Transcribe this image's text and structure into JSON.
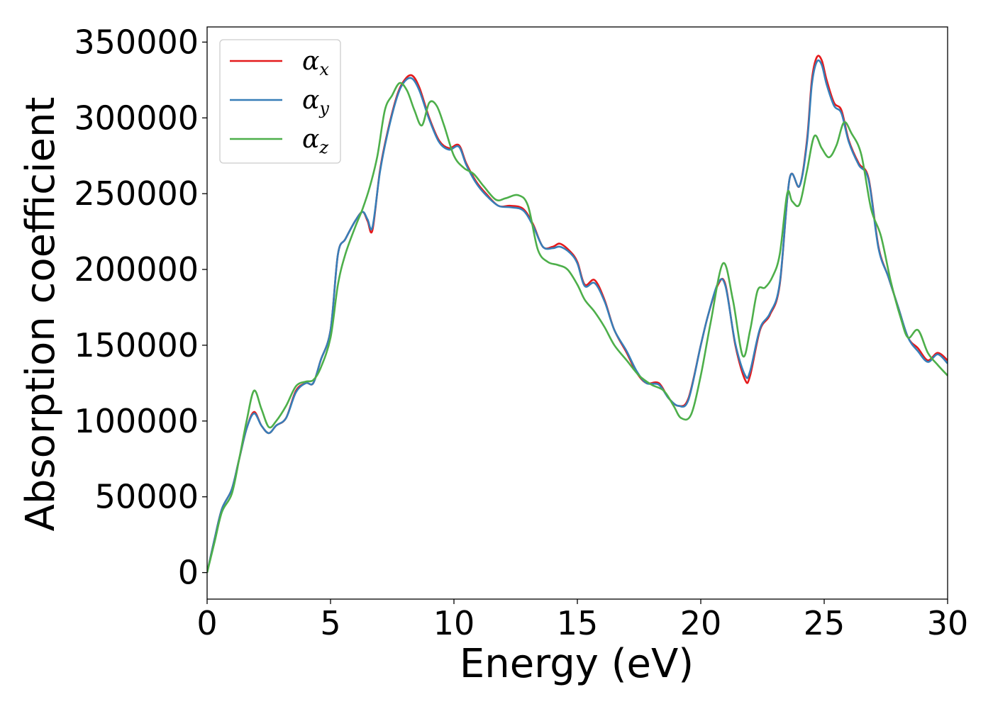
{
  "chart_data": {
    "type": "line",
    "title": "",
    "xlabel": "Energy (eV)",
    "ylabel": "Absorption coefficient",
    "xlim": [
      0,
      30
    ],
    "ylim": [
      -17500,
      360000
    ],
    "xticks": [
      0,
      5,
      10,
      15,
      20,
      25,
      30
    ],
    "yticks": [
      0,
      50000,
      100000,
      150000,
      200000,
      250000,
      300000,
      350000
    ],
    "grid": false,
    "legend_position": "top-left",
    "series": [
      {
        "name": "α_x",
        "name_base": "α",
        "name_sub": "x",
        "color": "#e41a1c",
        "x": [
          0,
          0.3,
          0.6,
          1.0,
          1.3,
          1.6,
          1.9,
          2.2,
          2.5,
          2.8,
          3.2,
          3.6,
          4.0,
          4.3,
          4.6,
          5.0,
          5.3,
          5.6,
          6.0,
          6.3,
          6.5,
          6.7,
          7.0,
          7.3,
          7.7,
          8.0,
          8.3,
          8.6,
          9.0,
          9.4,
          9.8,
          10.2,
          10.5,
          10.9,
          11.3,
          11.8,
          12.3,
          12.8,
          13.2,
          13.6,
          14.0,
          14.3,
          14.7,
          15.0,
          15.3,
          15.7,
          16.1,
          16.5,
          17.0,
          17.4,
          17.8,
          18.3,
          18.7,
          19.1,
          19.5,
          20.0,
          20.3,
          20.7,
          21.0,
          21.4,
          21.8,
          22.0,
          22.4,
          22.8,
          23.2,
          23.6,
          24.0,
          24.3,
          24.5,
          24.7,
          24.9,
          25.1,
          25.4,
          25.7,
          26.0,
          26.4,
          26.8,
          27.2,
          27.6,
          28.0,
          28.4,
          28.8,
          29.2,
          29.6,
          30.0
        ],
        "y": [
          0,
          22000,
          42000,
          55000,
          75000,
          95000,
          106000,
          97000,
          92000,
          97000,
          102000,
          120000,
          125000,
          125000,
          140000,
          160000,
          210000,
          220000,
          232000,
          238000,
          232000,
          226000,
          265000,
          290000,
          315000,
          325000,
          328000,
          320000,
          300000,
          285000,
          280000,
          282000,
          270000,
          258000,
          250000,
          242000,
          242000,
          240000,
          230000,
          215000,
          215000,
          217000,
          212000,
          205000,
          190000,
          193000,
          180000,
          160000,
          145000,
          132000,
          125000,
          125000,
          115000,
          110000,
          115000,
          150000,
          170000,
          190000,
          190000,
          150000,
          127000,
          130000,
          160000,
          170000,
          190000,
          260000,
          255000,
          285000,
          325000,
          340000,
          338000,
          325000,
          310000,
          305000,
          285000,
          270000,
          260000,
          215000,
          195000,
          175000,
          155000,
          148000,
          140000,
          145000,
          140000
        ]
      },
      {
        "name": "α_y",
        "name_base": "α",
        "name_sub": "y",
        "color": "#377eb8",
        "x": [
          0,
          0.3,
          0.6,
          1.0,
          1.3,
          1.6,
          1.9,
          2.2,
          2.5,
          2.8,
          3.2,
          3.6,
          4.0,
          4.3,
          4.6,
          5.0,
          5.3,
          5.6,
          6.0,
          6.3,
          6.5,
          6.7,
          7.0,
          7.3,
          7.7,
          8.0,
          8.3,
          8.6,
          9.0,
          9.4,
          9.8,
          10.2,
          10.5,
          10.9,
          11.3,
          11.8,
          12.3,
          12.8,
          13.2,
          13.6,
          14.0,
          14.3,
          14.7,
          15.0,
          15.3,
          15.7,
          16.1,
          16.5,
          17.0,
          17.4,
          17.8,
          18.3,
          18.7,
          19.1,
          19.5,
          20.0,
          20.3,
          20.7,
          21.0,
          21.4,
          21.8,
          22.0,
          22.4,
          22.8,
          23.2,
          23.6,
          24.0,
          24.3,
          24.5,
          24.7,
          24.9,
          25.1,
          25.4,
          25.7,
          26.0,
          26.4,
          26.8,
          27.2,
          27.6,
          28.0,
          28.4,
          28.8,
          29.2,
          29.6,
          30.0
        ],
        "y": [
          0,
          22000,
          42000,
          55000,
          75000,
          95000,
          105000,
          97000,
          92000,
          97000,
          102000,
          119000,
          125000,
          125000,
          140000,
          160000,
          210000,
          220000,
          232000,
          238000,
          233000,
          228000,
          264000,
          289000,
          314000,
          324000,
          326000,
          318000,
          299000,
          284000,
          279000,
          281000,
          269000,
          257000,
          249000,
          242000,
          241000,
          239000,
          229000,
          215000,
          214000,
          215000,
          211000,
          204000,
          189000,
          191000,
          179000,
          160000,
          146000,
          133000,
          125000,
          124000,
          115000,
          110000,
          114000,
          150000,
          170000,
          191000,
          189000,
          151000,
          130000,
          133000,
          161000,
          171000,
          191000,
          260000,
          255000,
          283000,
          322000,
          337000,
          335000,
          322000,
          308000,
          303000,
          284000,
          269000,
          259000,
          214000,
          195000,
          175000,
          155000,
          146000,
          139000,
          144000,
          138000
        ]
      },
      {
        "name": "α_z",
        "name_base": "α",
        "name_sub": "z",
        "color": "#4daf4a",
        "x": [
          0,
          0.3,
          0.6,
          1.0,
          1.3,
          1.6,
          1.9,
          2.2,
          2.5,
          2.8,
          3.2,
          3.6,
          4.0,
          4.3,
          4.6,
          5.0,
          5.3,
          5.6,
          6.0,
          6.3,
          6.6,
          6.9,
          7.2,
          7.5,
          7.8,
          8.1,
          8.4,
          8.7,
          9.0,
          9.3,
          9.6,
          10.0,
          10.4,
          10.8,
          11.2,
          11.7,
          12.1,
          12.6,
          13.0,
          13.4,
          13.8,
          14.2,
          14.6,
          15.0,
          15.3,
          15.7,
          16.1,
          16.5,
          17.0,
          17.5,
          18.0,
          18.5,
          18.9,
          19.2,
          19.6,
          20.0,
          20.4,
          20.9,
          21.3,
          21.7,
          22.0,
          22.3,
          22.6,
          22.9,
          23.2,
          23.5,
          23.7,
          24.0,
          24.3,
          24.6,
          24.9,
          25.2,
          25.5,
          25.8,
          26.1,
          26.5,
          26.9,
          27.3,
          27.7,
          28.1,
          28.4,
          28.8,
          29.2,
          29.6,
          30.0
        ],
        "y": [
          0,
          20000,
          40000,
          52000,
          75000,
          100000,
          120000,
          108000,
          96000,
          100000,
          110000,
          123000,
          126000,
          127000,
          135000,
          155000,
          190000,
          210000,
          228000,
          240000,
          255000,
          275000,
          305000,
          315000,
          323000,
          318000,
          305000,
          295000,
          310000,
          308000,
          295000,
          275000,
          267000,
          263000,
          255000,
          246000,
          247000,
          249000,
          242000,
          213000,
          205000,
          203000,
          200000,
          190000,
          180000,
          172000,
          162000,
          150000,
          140000,
          130000,
          124000,
          120000,
          110000,
          102000,
          104000,
          130000,
          165000,
          204000,
          180000,
          143000,
          160000,
          186000,
          188000,
          195000,
          210000,
          250000,
          245000,
          243000,
          265000,
          288000,
          280000,
          274000,
          282000,
          297000,
          290000,
          276000,
          240000,
          222000,
          192000,
          168000,
          155000,
          160000,
          145000,
          137000,
          130000
        ]
      }
    ]
  }
}
